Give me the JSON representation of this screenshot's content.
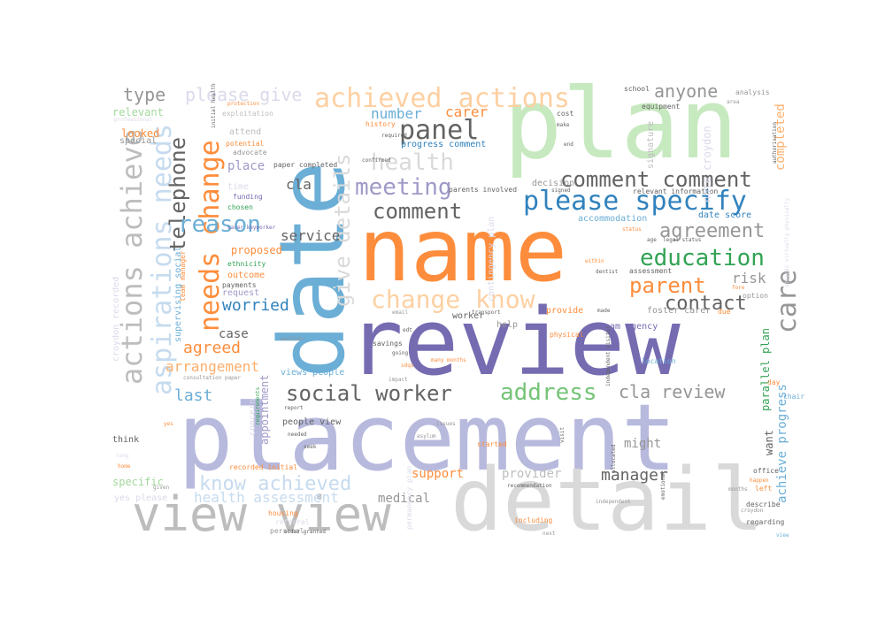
{
  "words": [
    {
      "text": "placement",
      "color": "#b7b9dd"
    },
    {
      "text": "review",
      "color": "#756bb1"
    },
    {
      "text": "name",
      "color": "#fd8d3c"
    },
    {
      "text": "date",
      "color": "#6baed6"
    },
    {
      "text": "plan",
      "color": "#c7e9c0"
    },
    {
      "text": "detail",
      "color": "#d9d9d9"
    },
    {
      "text": "view view",
      "color": "#bdbdbd"
    },
    {
      "text": "achieved actions",
      "color": "#fdd0a2"
    },
    {
      "text": "please specify",
      "color": "#3182bd"
    },
    {
      "text": "actions achieve",
      "color": "#bdbdbd"
    },
    {
      "text": "aspirations needs",
      "color": "#c6dbef"
    },
    {
      "text": "needs change",
      "color": "#fd8d3c"
    },
    {
      "text": "social worker",
      "color": "#636363"
    },
    {
      "text": "comment",
      "color": "#636363"
    },
    {
      "text": "education",
      "color": "#31a354"
    },
    {
      "text": "change know",
      "color": "#fdd0a2"
    },
    {
      "text": "address",
      "color": "#74c476"
    },
    {
      "text": "meeting",
      "color": "#9e9ac8"
    },
    {
      "text": "health",
      "color": "#d9d9d9"
    },
    {
      "text": "panel",
      "color": "#636363"
    },
    {
      "text": "comment comment",
      "color": "#636363"
    },
    {
      "text": "give details",
      "color": "#d9d9d9"
    },
    {
      "text": "telephone",
      "color": "#636363"
    },
    {
      "text": "reason",
      "color": "#6baed6"
    },
    {
      "text": "care",
      "color": "#969696"
    },
    {
      "text": "parent",
      "color": "#fd8d3c"
    },
    {
      "text": "contact",
      "color": "#636363"
    },
    {
      "text": "agreement",
      "color": "#969696"
    },
    {
      "text": "know achieved",
      "color": "#c6dbef"
    },
    {
      "text": "cla review",
      "color": "#969696"
    },
    {
      "text": "anyone",
      "color": "#969696"
    },
    {
      "text": "type",
      "color": "#969696"
    },
    {
      "text": "please give",
      "color": "#dadaeb"
    },
    {
      "text": "carer",
      "color": "#fd8d3c"
    },
    {
      "text": "number",
      "color": "#6baed6"
    },
    {
      "text": "agreed",
      "color": "#fd8d3c"
    },
    {
      "text": "worried",
      "color": "#3182bd"
    },
    {
      "text": "service",
      "color": "#636363"
    },
    {
      "text": "cla",
      "color": "#636363"
    },
    {
      "text": "last",
      "color": "#6baed6"
    },
    {
      "text": "arrangement",
      "color": "#fdae6b"
    },
    {
      "text": "case",
      "color": "#636363"
    },
    {
      "text": "place",
      "color": "#9e9ac8"
    },
    {
      "text": "manager",
      "color": "#636363"
    },
    {
      "text": "health assessment",
      "color": "#c6dbef"
    },
    {
      "text": "support",
      "color": "#fd8d3c"
    },
    {
      "text": "medical",
      "color": "#969696"
    },
    {
      "text": "provider",
      "color": "#bdbdbd"
    },
    {
      "text": "risk",
      "color": "#969696"
    },
    {
      "text": "completed",
      "color": "#fdae6b"
    },
    {
      "text": "achieve progress",
      "color": "#6baed6"
    },
    {
      "text": "parallel plan",
      "color": "#31a354"
    },
    {
      "text": "might",
      "color": "#969696"
    },
    {
      "text": "date score",
      "color": "#3182bd"
    },
    {
      "text": "relevant information",
      "color": "#636363"
    },
    {
      "text": "accommodation",
      "color": "#6baed6"
    },
    {
      "text": "progress comment",
      "color": "#3182bd"
    },
    {
      "text": "decision",
      "color": "#969696"
    },
    {
      "text": "signature",
      "color": "#bdbdbd"
    },
    {
      "text": "note croydon",
      "color": "#dadaeb"
    },
    {
      "text": "school",
      "color": "#636363"
    },
    {
      "text": "relevant",
      "color": "#a1d99b"
    },
    {
      "text": "looked",
      "color": "#fd8d3c"
    },
    {
      "text": "special",
      "color": "#969696"
    },
    {
      "text": "attend",
      "color": "#bdbdbd"
    },
    {
      "text": "exploitation",
      "color": "#bdbdbd"
    },
    {
      "text": "protection",
      "color": "#fd8d3c"
    },
    {
      "text": "advocate",
      "color": "#969696"
    },
    {
      "text": "potential",
      "color": "#fd8d3c"
    },
    {
      "text": "paper completed",
      "color": "#636363"
    },
    {
      "text": "time",
      "color": "#dadaeb"
    },
    {
      "text": "funding",
      "color": "#756bb1"
    },
    {
      "text": "chosen",
      "color": "#31a354"
    },
    {
      "text": "proposed",
      "color": "#fd8d3c"
    },
    {
      "text": "team manager",
      "color": "#fd8d3c"
    },
    {
      "text": "ethnicity",
      "color": "#31a354"
    },
    {
      "text": "outcome",
      "color": "#fd8d3c"
    },
    {
      "text": "payments",
      "color": "#636363"
    },
    {
      "text": "request",
      "color": "#9e9ac8"
    },
    {
      "text": "appointment",
      "color": "#9e9ac8"
    },
    {
      "text": "supervising social",
      "color": "#6baed6"
    },
    {
      "text": "croydon recorded",
      "color": "#dadaeb"
    },
    {
      "text": "concern",
      "color": "#dadaeb"
    },
    {
      "text": "people view",
      "color": "#636363"
    },
    {
      "text": "views people",
      "color": "#6baed6"
    },
    {
      "text": "consultation paper",
      "color": "#969696"
    },
    {
      "text": "recorded initial",
      "color": "#fd8d3c"
    },
    {
      "text": "specific",
      "color": "#a1d99b"
    },
    {
      "text": "yes please",
      "color": "#dadaeb"
    },
    {
      "text": "think",
      "color": "#636363"
    },
    {
      "text": "home",
      "color": "#fd8d3c"
    },
    {
      "text": "given",
      "color": "#969696"
    },
    {
      "text": "housing",
      "color": "#fd8d3c"
    },
    {
      "text": "referral",
      "color": "#dadaeb"
    },
    {
      "text": "personal",
      "color": "#969696"
    },
    {
      "text": "including",
      "color": "#fd8d3c"
    },
    {
      "text": "next",
      "color": "#969696"
    },
    {
      "text": "recommendation",
      "color": "#636363"
    },
    {
      "text": "started",
      "color": "#fd8d3c"
    },
    {
      "text": "help",
      "color": "#969696"
    },
    {
      "text": "physical",
      "color": "#fd8d3c"
    },
    {
      "text": "team agency",
      "color": "#756bb1"
    },
    {
      "text": "provide",
      "color": "#fd8d3c"
    },
    {
      "text": "foster carer",
      "color": "#969696"
    },
    {
      "text": "made",
      "color": "#636363"
    },
    {
      "text": "assessment",
      "color": "#636363"
    },
    {
      "text": "due",
      "color": "#fd8d3c"
    },
    {
      "text": "want",
      "color": "#636363"
    },
    {
      "text": "day",
      "color": "#fd8d3c"
    },
    {
      "text": "chair",
      "color": "#6baed6"
    },
    {
      "text": "office",
      "color": "#636363"
    },
    {
      "text": "happen",
      "color": "#fd8d3c"
    },
    {
      "text": "left",
      "color": "#fd8d3c"
    },
    {
      "text": "describe",
      "color": "#636363"
    },
    {
      "text": "regarding",
      "color": "#636363"
    },
    {
      "text": "view",
      "color": "#6baed6"
    },
    {
      "text": "croydon",
      "color": "#969696"
    },
    {
      "text": "months",
      "color": "#969696"
    },
    {
      "text": "many months",
      "color": "#fd8d3c"
    },
    {
      "text": "savings",
      "color": "#636363"
    },
    {
      "text": "going",
      "color": "#636363"
    },
    {
      "text": "permanency plan",
      "color": "#dadaeb"
    },
    {
      "text": "issues",
      "color": "#969696"
    },
    {
      "text": "asylum",
      "color": "#969696"
    },
    {
      "text": "equipment",
      "color": "#636363"
    },
    {
      "text": "cost",
      "color": "#636363"
    },
    {
      "text": "make",
      "color": "#636363"
    },
    {
      "text": "analysis",
      "color": "#969696"
    },
    {
      "text": "area",
      "color": "#969696"
    },
    {
      "text": "authorisation",
      "color": "#636363"
    },
    {
      "text": "option",
      "color": "#969696"
    },
    {
      "text": "within",
      "color": "#fd8d3c"
    },
    {
      "text": "dentist",
      "color": "#636363"
    },
    {
      "text": "location",
      "color": "#6baed6"
    },
    {
      "text": "status",
      "color": "#fd8d3c"
    },
    {
      "text": "age",
      "color": "#636363"
    },
    {
      "text": "legal status",
      "color": "#636363"
    },
    {
      "text": "history",
      "color": "#fd8d3c"
    },
    {
      "text": "required",
      "color": "#636363"
    },
    {
      "text": "parents involved",
      "color": "#636363"
    },
    {
      "text": "contingency plan",
      "color": "#dadaeb"
    },
    {
      "text": "signed",
      "color": "#636363"
    },
    {
      "text": "end",
      "color": "#636363"
    },
    {
      "text": "health",
      "color": "#d9d9d9"
    },
    {
      "text": "worker",
      "color": "#636363"
    },
    {
      "text": "transport",
      "color": "#636363"
    },
    {
      "text": "allocated",
      "color": "#636363"
    },
    {
      "text": "emotional",
      "color": "#636363"
    },
    {
      "text": "visit",
      "color": "#636363"
    },
    {
      "text": "impact",
      "color": "#969696"
    },
    {
      "text": "sdqs",
      "color": "#fd8d3c"
    },
    {
      "text": "edt",
      "color": "#636363"
    },
    {
      "text": "email",
      "color": "#969696"
    },
    {
      "text": "section",
      "color": "#969696"
    },
    {
      "text": "report",
      "color": "#636363"
    },
    {
      "text": "needed",
      "color": "#636363"
    },
    {
      "text": "seek",
      "color": "#636363"
    },
    {
      "text": "order granted",
      "color": "#636363"
    },
    {
      "text": "requirements",
      "color": "#31a354"
    },
    {
      "text": "independent visitor",
      "color": "#636363"
    },
    {
      "text": "independent",
      "color": "#969696"
    },
    {
      "text": "professional",
      "color": "#dadaeb"
    },
    {
      "text": "initial health",
      "color": "#636363"
    },
    {
      "text": "carer keyworker",
      "color": "#756bb1"
    },
    {
      "text": "attends virtually physically",
      "color": "#dadaeb"
    },
    {
      "text": "fore",
      "color": "#fd8d3c"
    },
    {
      "text": "confirmed",
      "color": "#636363"
    },
    {
      "text": "long",
      "color": "#dadaeb"
    },
    {
      "text": "yes",
      "color": "#fd8d3c"
    }
  ]
}
